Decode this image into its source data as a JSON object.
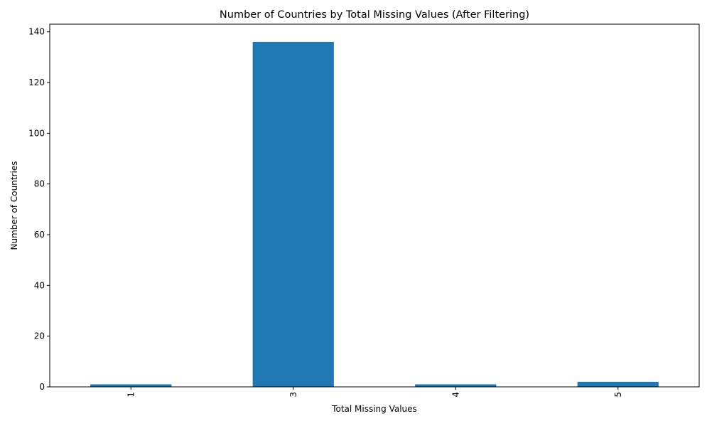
{
  "chart_data": {
    "type": "bar",
    "title": "Number of Countries by Total Missing Values (After Filtering)",
    "xlabel": "Total Missing Values",
    "ylabel": "Number of Countries",
    "categories": [
      "1",
      "3",
      "4",
      "5"
    ],
    "values": [
      1,
      136,
      1,
      2
    ],
    "ylim": [
      0,
      143
    ],
    "yticks": [
      0,
      20,
      40,
      60,
      80,
      100,
      120,
      140
    ],
    "x_tick_rotation": 90,
    "bar_color": "#1f77b4",
    "grid": false,
    "legend": "none"
  }
}
